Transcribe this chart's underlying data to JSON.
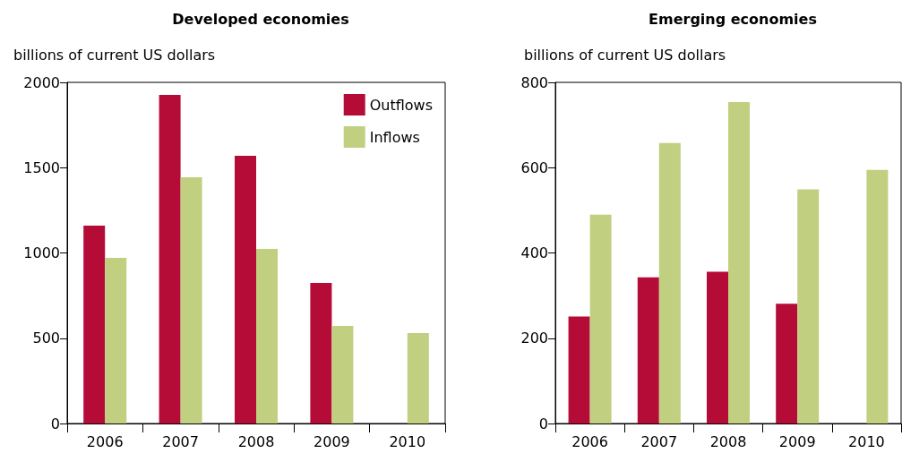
{
  "chart_data": [
    {
      "type": "bar",
      "title": "Developed economies",
      "ylabel": "billions of current US dollars",
      "categories": [
        "2006",
        "2007",
        "2008",
        "2009",
        "2010"
      ],
      "series": [
        {
          "name": "Outflows",
          "color": "#b50b37",
          "values": [
            1160,
            1926,
            1570,
            824,
            null
          ]
        },
        {
          "name": "Inflows",
          "color": "#c1cf80",
          "values": [
            971,
            1444,
            1024,
            572,
            530
          ]
        }
      ],
      "ylim": [
        0,
        2000
      ],
      "yticks": [
        0,
        500,
        1000,
        1500,
        2000
      ],
      "grid": false,
      "legend": "top right"
    },
    {
      "type": "bar",
      "title": "Emerging economies",
      "ylabel": "billions of current US dollars",
      "categories": [
        "2006",
        "2007",
        "2008",
        "2009",
        "2010"
      ],
      "series": [
        {
          "color": "#b50b37",
          "values": [
            251,
            343,
            356,
            281,
            null
          ]
        },
        {
          "color": "#c1cf80",
          "values": [
            490,
            658,
            754,
            549,
            595
          ]
        }
      ],
      "ylim": [
        0,
        800
      ],
      "yticks": [
        0,
        200,
        400,
        600,
        800
      ],
      "grid": false,
      "legend": false
    }
  ]
}
